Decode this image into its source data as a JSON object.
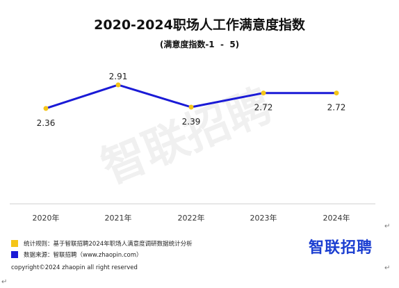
{
  "title": "2020-2024职场人工作满意度指数",
  "subtitle": "(满意度指数-1  -  5)",
  "watermark": "智联招聘",
  "chart_data": {
    "type": "line",
    "title": "2020-2024职场人工作满意度指数",
    "subtitle": "(满意度指数-1  -  5)",
    "categories": [
      "2020年",
      "2021年",
      "2022年",
      "2023年",
      "2024年"
    ],
    "series": [
      {
        "values": [
          2.36,
          2.91,
          2.39,
          2.72,
          2.72
        ]
      }
    ],
    "labels": [
      "2.36",
      "2.91",
      "2.39",
      "2.72",
      "2.72"
    ],
    "ylim": [
      1,
      5
    ],
    "grid": false,
    "line_color": "#1a1ad6",
    "marker_color": "#f5c518"
  },
  "footer": {
    "note_rule": "统计规则：基于智联招聘2024年职场人满意度调研数据统计分析",
    "note_source": "数据来源：智联招聘（www.zhaopin.com）",
    "rule_color": "#f5c518",
    "source_color": "#1a1ad6",
    "brand": "智联招聘",
    "copyright": "copyright©2024 zhaopin all right reserved"
  },
  "return_mark": "↵"
}
